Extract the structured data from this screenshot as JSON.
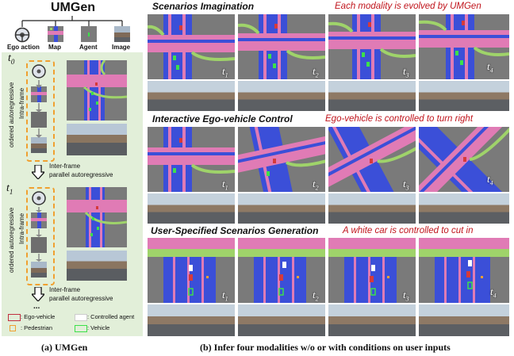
{
  "left": {
    "title": "UMGen",
    "modalities": [
      "Ego action",
      "Map",
      "Agent",
      "Image"
    ],
    "t0": "t",
    "t0_sub": "0",
    "t1": "t",
    "t1_sub": "1",
    "intra1": "Intra-frame",
    "intra2": "ordered autoregressive",
    "inter1": "Inter-frame",
    "inter2": "parallel autoregressive",
    "ellipsis": "...",
    "legend": {
      "ego": ": Ego-vehicle",
      "controlled": ": Controlled  agent",
      "pedestrian": ": Pedestrian",
      "vehicle": ": Vehicle"
    },
    "caption": "(a) UMGen"
  },
  "right": {
    "rows": [
      {
        "heading": "Scenarios Imagination",
        "note": "Each modality is evolved by UMGen"
      },
      {
        "heading": "Interactive Ego-vehicle Control",
        "note": "Ego-vehicle is controlled to turn right"
      },
      {
        "heading": "User-Specified  Scenarios Generation",
        "note": "A white car is controlled to cut in"
      }
    ],
    "times": [
      "1",
      "2",
      "3",
      "4"
    ],
    "t_letter": "t",
    "caption": "(b) Infer four modalities  w/o or with conditions on user inputs"
  },
  "colors": {
    "left_bg": "#e2efd9",
    "orange_dash": "#f0a030",
    "lane_blue": "#3b4fd8",
    "lane_pink": "#e07bb5",
    "lane_green": "#9fd36a",
    "caption_red": "#c0141c"
  }
}
